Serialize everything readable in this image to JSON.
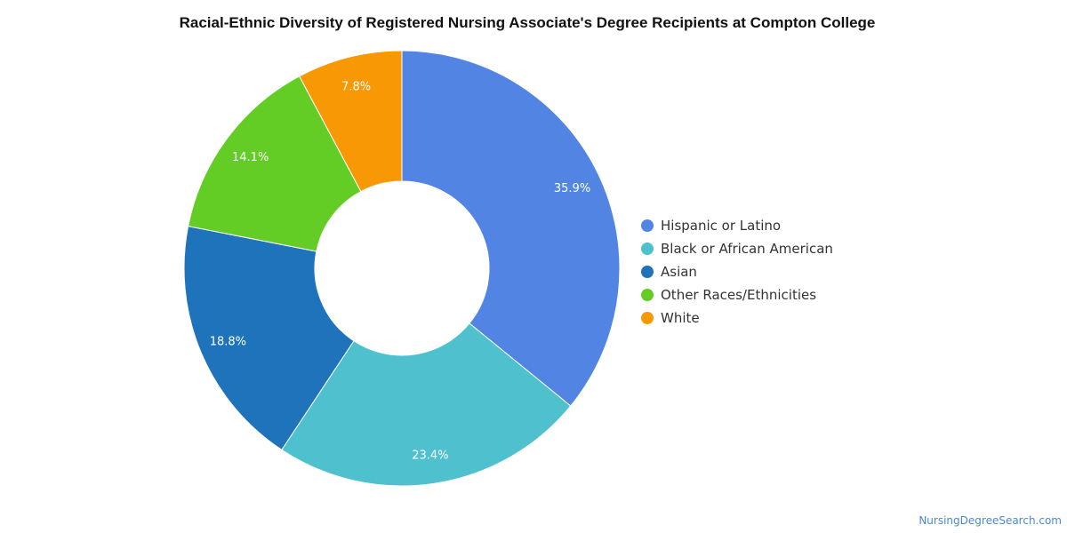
{
  "chart_data": {
    "type": "pie",
    "donut": true,
    "title": "Racial-Ethnic Diversity of Registered Nursing Associate's Degree Recipients at Compton College",
    "slices": [
      {
        "label": "Hispanic or Latino",
        "value": 35.9,
        "display": "35.9%",
        "color": "#5285e3"
      },
      {
        "label": "Black or African American",
        "value": 23.4,
        "display": "23.4%",
        "color": "#4fc0ce"
      },
      {
        "label": "Asian",
        "value": 18.8,
        "display": "18.8%",
        "color": "#1f73bb"
      },
      {
        "label": "Other Races/Ethnicities",
        "value": 14.1,
        "display": "14.1%",
        "color": "#63cc25"
      },
      {
        "label": "White",
        "value": 7.8,
        "display": "7.8%",
        "color": "#f79804"
      }
    ],
    "legend_position": "right"
  },
  "footer": {
    "credit": "NursingDegreeSearch.com"
  }
}
